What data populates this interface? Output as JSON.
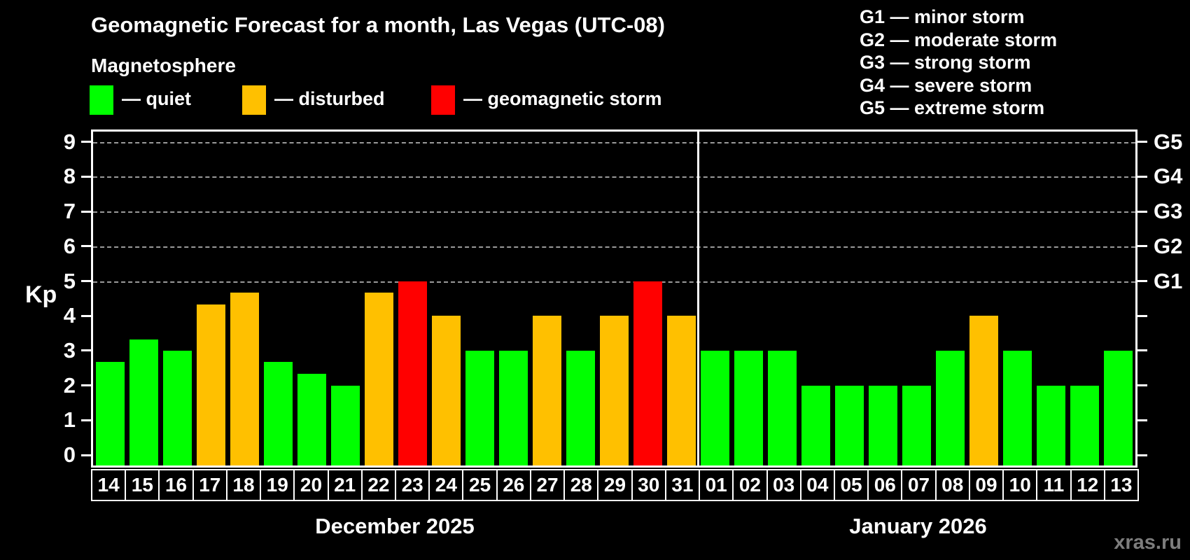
{
  "title": "Geomagnetic Forecast for a month, Las Vegas (UTC-08)",
  "subtitle": "Magnetosphere",
  "legend": {
    "items": [
      {
        "name": "quiet",
        "label": "— quiet",
        "color": "#00ff00",
        "x": 128
      },
      {
        "name": "disturbed",
        "label": "— disturbed",
        "color": "#ffc000",
        "x": 346
      },
      {
        "name": "storm",
        "label": "— geomagnetic storm",
        "color": "#ff0000",
        "x": 616
      }
    ]
  },
  "g_legend": [
    "G1 — minor storm",
    "G2 — moderate storm",
    "G3 — strong storm",
    "G4 — severe storm",
    "G5 — extreme storm"
  ],
  "watermark": "xras.ru",
  "chart_data": {
    "type": "bar",
    "title": "Geomagnetic Forecast for a month, Las Vegas (UTC-08)",
    "ylabel": "Kp",
    "ylim": [
      0,
      9
    ],
    "yticks": [
      0,
      1,
      2,
      3,
      4,
      5,
      6,
      7,
      8,
      9
    ],
    "gridlines_at": [
      5,
      6,
      7,
      8,
      9
    ],
    "grid": "dashed, horizontal, only at Kp 5-9",
    "right_axis_labels": [
      {
        "kp": 5,
        "label": "G1"
      },
      {
        "kp": 6,
        "label": "G2"
      },
      {
        "kp": 7,
        "label": "G3"
      },
      {
        "kp": 8,
        "label": "G4"
      },
      {
        "kp": 9,
        "label": "G5"
      }
    ],
    "colors": {
      "quiet": "#00ff00",
      "disturbed": "#ffc000",
      "storm": "#ff0000"
    },
    "months": [
      {
        "label": "December 2025",
        "days": [
          {
            "day": "14",
            "kp": 2.67,
            "status": "quiet"
          },
          {
            "day": "15",
            "kp": 3.33,
            "status": "quiet"
          },
          {
            "day": "16",
            "kp": 3.0,
            "status": "quiet"
          },
          {
            "day": "17",
            "kp": 4.33,
            "status": "disturbed"
          },
          {
            "day": "18",
            "kp": 4.67,
            "status": "disturbed"
          },
          {
            "day": "19",
            "kp": 2.67,
            "status": "quiet"
          },
          {
            "day": "20",
            "kp": 2.33,
            "status": "quiet"
          },
          {
            "day": "21",
            "kp": 2.0,
            "status": "quiet"
          },
          {
            "day": "22",
            "kp": 4.67,
            "status": "disturbed"
          },
          {
            "day": "23",
            "kp": 5.0,
            "status": "storm"
          },
          {
            "day": "24",
            "kp": 4.0,
            "status": "disturbed"
          },
          {
            "day": "25",
            "kp": 3.0,
            "status": "quiet"
          },
          {
            "day": "26",
            "kp": 3.0,
            "status": "quiet"
          },
          {
            "day": "27",
            "kp": 4.0,
            "status": "disturbed"
          },
          {
            "day": "28",
            "kp": 3.0,
            "status": "quiet"
          },
          {
            "day": "29",
            "kp": 4.0,
            "status": "disturbed"
          },
          {
            "day": "30",
            "kp": 5.0,
            "status": "storm"
          },
          {
            "day": "31",
            "kp": 4.0,
            "status": "disturbed"
          }
        ]
      },
      {
        "label": "January 2026",
        "days": [
          {
            "day": "01",
            "kp": 3.0,
            "status": "quiet"
          },
          {
            "day": "02",
            "kp": 3.0,
            "status": "quiet"
          },
          {
            "day": "03",
            "kp": 3.0,
            "status": "quiet"
          },
          {
            "day": "04",
            "kp": 2.0,
            "status": "quiet"
          },
          {
            "day": "05",
            "kp": 2.0,
            "status": "quiet"
          },
          {
            "day": "06",
            "kp": 2.0,
            "status": "quiet"
          },
          {
            "day": "07",
            "kp": 2.0,
            "status": "quiet"
          },
          {
            "day": "08",
            "kp": 3.0,
            "status": "quiet"
          },
          {
            "day": "09",
            "kp": 4.0,
            "status": "disturbed"
          },
          {
            "day": "10",
            "kp": 3.0,
            "status": "quiet"
          },
          {
            "day": "11",
            "kp": 2.0,
            "status": "quiet"
          },
          {
            "day": "12",
            "kp": 2.0,
            "status": "quiet"
          },
          {
            "day": "13",
            "kp": 3.0,
            "status": "quiet"
          }
        ]
      }
    ]
  }
}
